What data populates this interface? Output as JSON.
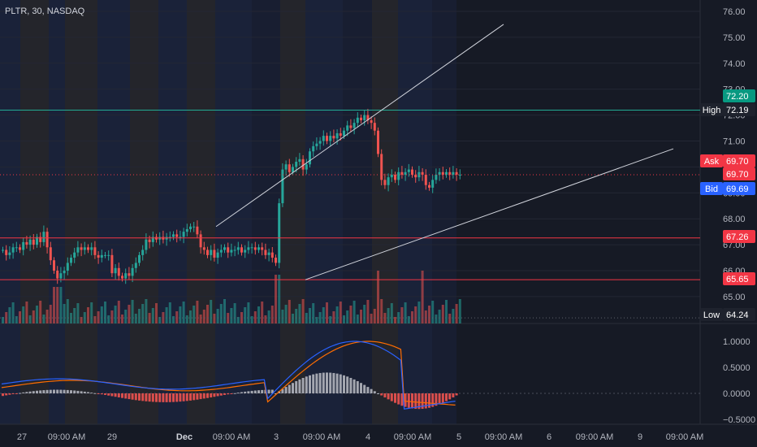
{
  "header": {
    "symbol": "PLTR, 30, NASDAQ"
  },
  "colors": {
    "background": "#161a25",
    "up": "#26a69a",
    "down": "#ef5350",
    "hline": "#f23645",
    "high_line": "#22ab94",
    "macd": "#2962ff",
    "signal": "#ff6d00",
    "trend": "#d1d4dc",
    "session_us": "#2a2a2e",
    "session_ext": "#1c2540",
    "tag_ask": "#f23645",
    "tag_bid": "#2962ff",
    "tag_high": "#1e222d",
    "tag_green": "#089981"
  },
  "chart_data": [
    {
      "type": "candlestick",
      "symbol": "PLTR",
      "interval": "30",
      "exchange": "NASDAQ",
      "y_axis": {
        "range": [
          64.2,
          76.2
        ],
        "ticks": [
          "76.00",
          "75.00",
          "74.00",
          "73.00",
          "72.00",
          "71.00",
          "70.00",
          "69.00",
          "68.00",
          "67.00",
          "66.00",
          "65.00"
        ]
      },
      "x_axis": {
        "ticks": [
          "27",
          "09:00 AM",
          "29",
          "Dec",
          "09:00 AM",
          "3",
          "09:00 AM",
          "4",
          "09:00 AM",
          "5",
          "09:00 AM",
          "6",
          "09:00 AM",
          "9",
          "09:00 AM"
        ]
      },
      "close_path": [
        [
          0,
          66.8
        ],
        [
          0.01,
          66.6
        ],
        [
          0.02,
          66.7
        ],
        [
          0.03,
          66.9
        ],
        [
          0.04,
          66.9
        ],
        [
          0.05,
          66.8
        ],
        [
          0.06,
          67.1
        ],
        [
          0.07,
          67.0
        ],
        [
          0.08,
          67.2
        ],
        [
          0.09,
          67.0
        ],
        [
          0.1,
          67.3
        ],
        [
          0.11,
          67.1
        ],
        [
          0.12,
          67.5
        ],
        [
          0.13,
          66.9
        ],
        [
          0.14,
          66.4
        ],
        [
          0.15,
          66.0
        ],
        [
          0.16,
          65.7
        ],
        [
          0.17,
          65.9
        ],
        [
          0.18,
          66.0
        ],
        [
          0.19,
          66.3
        ],
        [
          0.2,
          66.5
        ],
        [
          0.21,
          66.7
        ],
        [
          0.22,
          66.9
        ],
        [
          0.23,
          66.8
        ],
        [
          0.24,
          66.9
        ],
        [
          0.25,
          66.8
        ],
        [
          0.26,
          66.9
        ],
        [
          0.27,
          66.6
        ],
        [
          0.28,
          66.5
        ],
        [
          0.29,
          66.6
        ],
        [
          0.3,
          66.6
        ],
        [
          0.31,
          66.6
        ],
        [
          0.32,
          65.9
        ],
        [
          0.33,
          66.1
        ],
        [
          0.34,
          65.8
        ],
        [
          0.35,
          65.7
        ],
        [
          0.36,
          65.9
        ],
        [
          0.37,
          65.8
        ],
        [
          0.38,
          66.1
        ],
        [
          0.39,
          66.3
        ],
        [
          0.4,
          66.6
        ],
        [
          0.41,
          66.8
        ],
        [
          0.42,
          67.2
        ],
        [
          0.43,
          67.1
        ],
        [
          0.44,
          67.3
        ],
        [
          0.45,
          67.2
        ],
        [
          0.46,
          67.3
        ],
        [
          0.47,
          67.2
        ],
        [
          0.48,
          67.3
        ],
        [
          0.49,
          67.3
        ],
        [
          0.5,
          67.4
        ],
        [
          0.51,
          67.3
        ],
        [
          0.52,
          67.3
        ],
        [
          0.53,
          67.5
        ],
        [
          0.54,
          67.6
        ],
        [
          0.55,
          67.7
        ],
        [
          0.56,
          67.7
        ],
        [
          0.57,
          67.4
        ],
        [
          0.58,
          66.9
        ],
        [
          0.59,
          66.8
        ],
        [
          0.6,
          66.6
        ],
        [
          0.61,
          66.8
        ],
        [
          0.62,
          66.5
        ],
        [
          0.63,
          66.7
        ],
        [
          0.64,
          66.8
        ],
        [
          0.65,
          66.9
        ],
        [
          0.66,
          66.7
        ],
        [
          0.67,
          66.8
        ],
        [
          0.68,
          66.8
        ],
        [
          0.69,
          66.9
        ],
        [
          0.7,
          66.7
        ],
        [
          0.71,
          66.8
        ],
        [
          0.72,
          66.9
        ],
        [
          0.73,
          66.9
        ],
        [
          0.74,
          66.8
        ],
        [
          0.75,
          66.9
        ],
        [
          0.76,
          66.8
        ],
        [
          0.77,
          66.6
        ],
        [
          0.78,
          66.7
        ],
        [
          0.79,
          66.5
        ],
        [
          0.8,
          66.3
        ],
        [
          0.81,
          68.6
        ],
        [
          0.82,
          69.9
        ],
        [
          0.83,
          70.1
        ],
        [
          0.84,
          69.8
        ],
        [
          0.85,
          70.0
        ],
        [
          0.86,
          70.2
        ],
        [
          0.87,
          70.3
        ],
        [
          0.88,
          69.9
        ],
        [
          0.89,
          70.1
        ],
        [
          0.9,
          70.6
        ],
        [
          0.91,
          70.8
        ],
        [
          0.92,
          70.9
        ],
        [
          0.93,
          71.0
        ],
        [
          0.94,
          71.2
        ],
        [
          0.95,
          71.0
        ],
        [
          0.96,
          71.2
        ],
        [
          0.97,
          71.1
        ],
        [
          0.98,
          71.3
        ],
        [
          0.99,
          71.2
        ],
        [
          1.0,
          71.4
        ],
        [
          1.01,
          71.6
        ],
        [
          1.02,
          71.5
        ],
        [
          1.03,
          71.7
        ],
        [
          1.04,
          71.9
        ],
        [
          1.05,
          71.8
        ],
        [
          1.06,
          72.0
        ],
        [
          1.07,
          71.8
        ],
        [
          1.08,
          71.7
        ],
        [
          1.09,
          71.4
        ],
        [
          1.1,
          70.5
        ],
        [
          1.11,
          69.5
        ],
        [
          1.12,
          69.3
        ],
        [
          1.13,
          69.6
        ],
        [
          1.14,
          69.7
        ],
        [
          1.15,
          69.5
        ],
        [
          1.16,
          69.8
        ],
        [
          1.17,
          69.7
        ],
        [
          1.18,
          69.8
        ],
        [
          1.19,
          69.9
        ],
        [
          1.2,
          69.7
        ],
        [
          1.21,
          69.6
        ],
        [
          1.22,
          69.8
        ],
        [
          1.23,
          69.7
        ],
        [
          1.24,
          69.3
        ],
        [
          1.25,
          69.2
        ],
        [
          1.26,
          69.5
        ],
        [
          1.27,
          69.7
        ],
        [
          1.28,
          69.8
        ],
        [
          1.29,
          69.7
        ],
        [
          1.3,
          69.8
        ],
        [
          1.31,
          69.7
        ],
        [
          1.32,
          69.8
        ],
        [
          1.33,
          69.7
        ],
        [
          1.34,
          69.7
        ]
      ],
      "horizontal_lines": [
        {
          "price": 72.19,
          "label": "High",
          "value": "72.19"
        },
        {
          "price": 69.7,
          "label": "Ask",
          "value": "69.70"
        },
        {
          "price": 67.26,
          "label": "",
          "value": "67.26"
        },
        {
          "price": 65.65,
          "label": "",
          "value": "65.65"
        },
        {
          "price": 64.24,
          "label": "Low",
          "value": "64.24"
        }
      ],
      "price_tags": [
        {
          "label": "",
          "value": "72.20",
          "kind": "green"
        },
        {
          "label": "High",
          "value": "72.19",
          "kind": "high"
        },
        {
          "label": "Ask",
          "value": "69.70",
          "kind": "ask"
        },
        {
          "label": "",
          "value": "69.70",
          "kind": "ask"
        },
        {
          "label": "Bid",
          "value": "69.69",
          "kind": "bid"
        },
        {
          "label": "",
          "value": "67.26",
          "kind": "ask"
        },
        {
          "label": "",
          "value": "65.65",
          "kind": "ask"
        },
        {
          "label": "Low",
          "value": "64.24",
          "kind": "high"
        }
      ],
      "trendlines": [
        {
          "from": [
            "3rd session",
            67.7
          ],
          "to": [
            "5th session",
            75.5
          ]
        },
        {
          "from": [
            "4th session",
            65.65
          ],
          "to": [
            "9th session",
            70.7
          ]
        }
      ]
    },
    {
      "type": "histogram",
      "indicator": "MACD",
      "y_axis": {
        "range": [
          -0.5,
          1.0
        ],
        "ticks": [
          "1.0000",
          "0.5000",
          "0.0000",
          "−0.5000"
        ]
      }
    }
  ]
}
